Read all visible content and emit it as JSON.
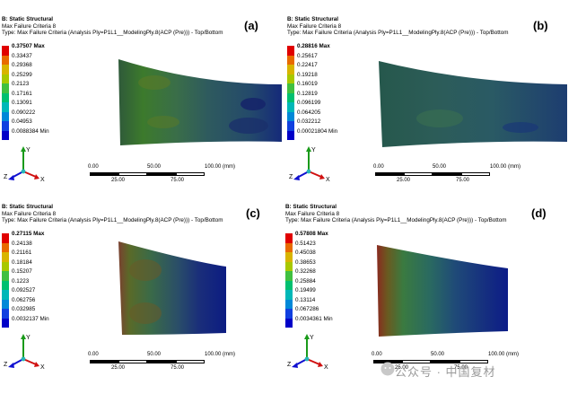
{
  "panels": [
    {
      "id": "(a)",
      "header": {
        "title": "B: Static Structural",
        "subtitle": "Max Failure Criteria 8",
        "type_line": "Type: Max Failure Criteria (Analysis Ply=P1L1__ModelingPly.8(ACP (Pre))) - Top/Bottom"
      },
      "legend": [
        "0.37507 Max",
        "0.33437",
        "0.29368",
        "0.25299",
        "0.2123",
        "0.17161",
        "0.13091",
        "0.090222",
        "0.04953",
        "0.0088384 Min"
      ]
    },
    {
      "id": "(b)",
      "header": {
        "title": "B: Static Structural",
        "subtitle": "Max Failure Criteria 8",
        "type_line": "Type: Max Failure Criteria (Analysis Ply=P1L1__ModelingPly.8(ACP (Pre))) - Top/Bottom"
      },
      "legend": [
        "0.28816 Max",
        "0.25617",
        "0.22417",
        "0.19218",
        "0.16019",
        "0.12819",
        "0.096199",
        "0.064205",
        "0.032212",
        "0.00021804 Min"
      ]
    },
    {
      "id": "(c)",
      "header": {
        "title": "B: Static Structural",
        "subtitle": "Max Failure Criteria 8",
        "type_line": "Type: Max Failure Criteria (Analysis Ply=P1L1__ModelingPly.8(ACP (Pre))) - Top/Bottom"
      },
      "legend": [
        "0.27115 Max",
        "0.24138",
        "0.21161",
        "0.18184",
        "0.15207",
        "0.1223",
        "0.092527",
        "0.062756",
        "0.032985",
        "0.0032137 Min"
      ]
    },
    {
      "id": "(d)",
      "header": {
        "title": "B: Static Structural",
        "subtitle": "Max Failure Criteria 8",
        "type_line": "Type: Max Failure Criteria (Analysis Ply=P1L1__ModelingPly.8(ACP (Pre))) - Top/Bottom"
      },
      "legend": [
        "0.57808 Max",
        "0.51423",
        "0.45038",
        "0.38653",
        "0.32268",
        "0.25884",
        "0.19499",
        "0.13114",
        "0.067286",
        "0.0034361 Min"
      ]
    }
  ],
  "scale": {
    "top_ticks": [
      "0.00",
      "50.00",
      "100.00 (mm)"
    ],
    "bottom_ticks": [
      "25.00",
      "75.00"
    ]
  },
  "axes": {
    "x": "X",
    "y": "Y",
    "z": "Z"
  },
  "legend_colors": [
    "#e00000",
    "#e86a00",
    "#d8b400",
    "#a8c800",
    "#40c040",
    "#00c070",
    "#00b8b8",
    "#0088d8",
    "#1040e0",
    "#0000c8"
  ],
  "watermark": "公众号 · 中国复材"
}
